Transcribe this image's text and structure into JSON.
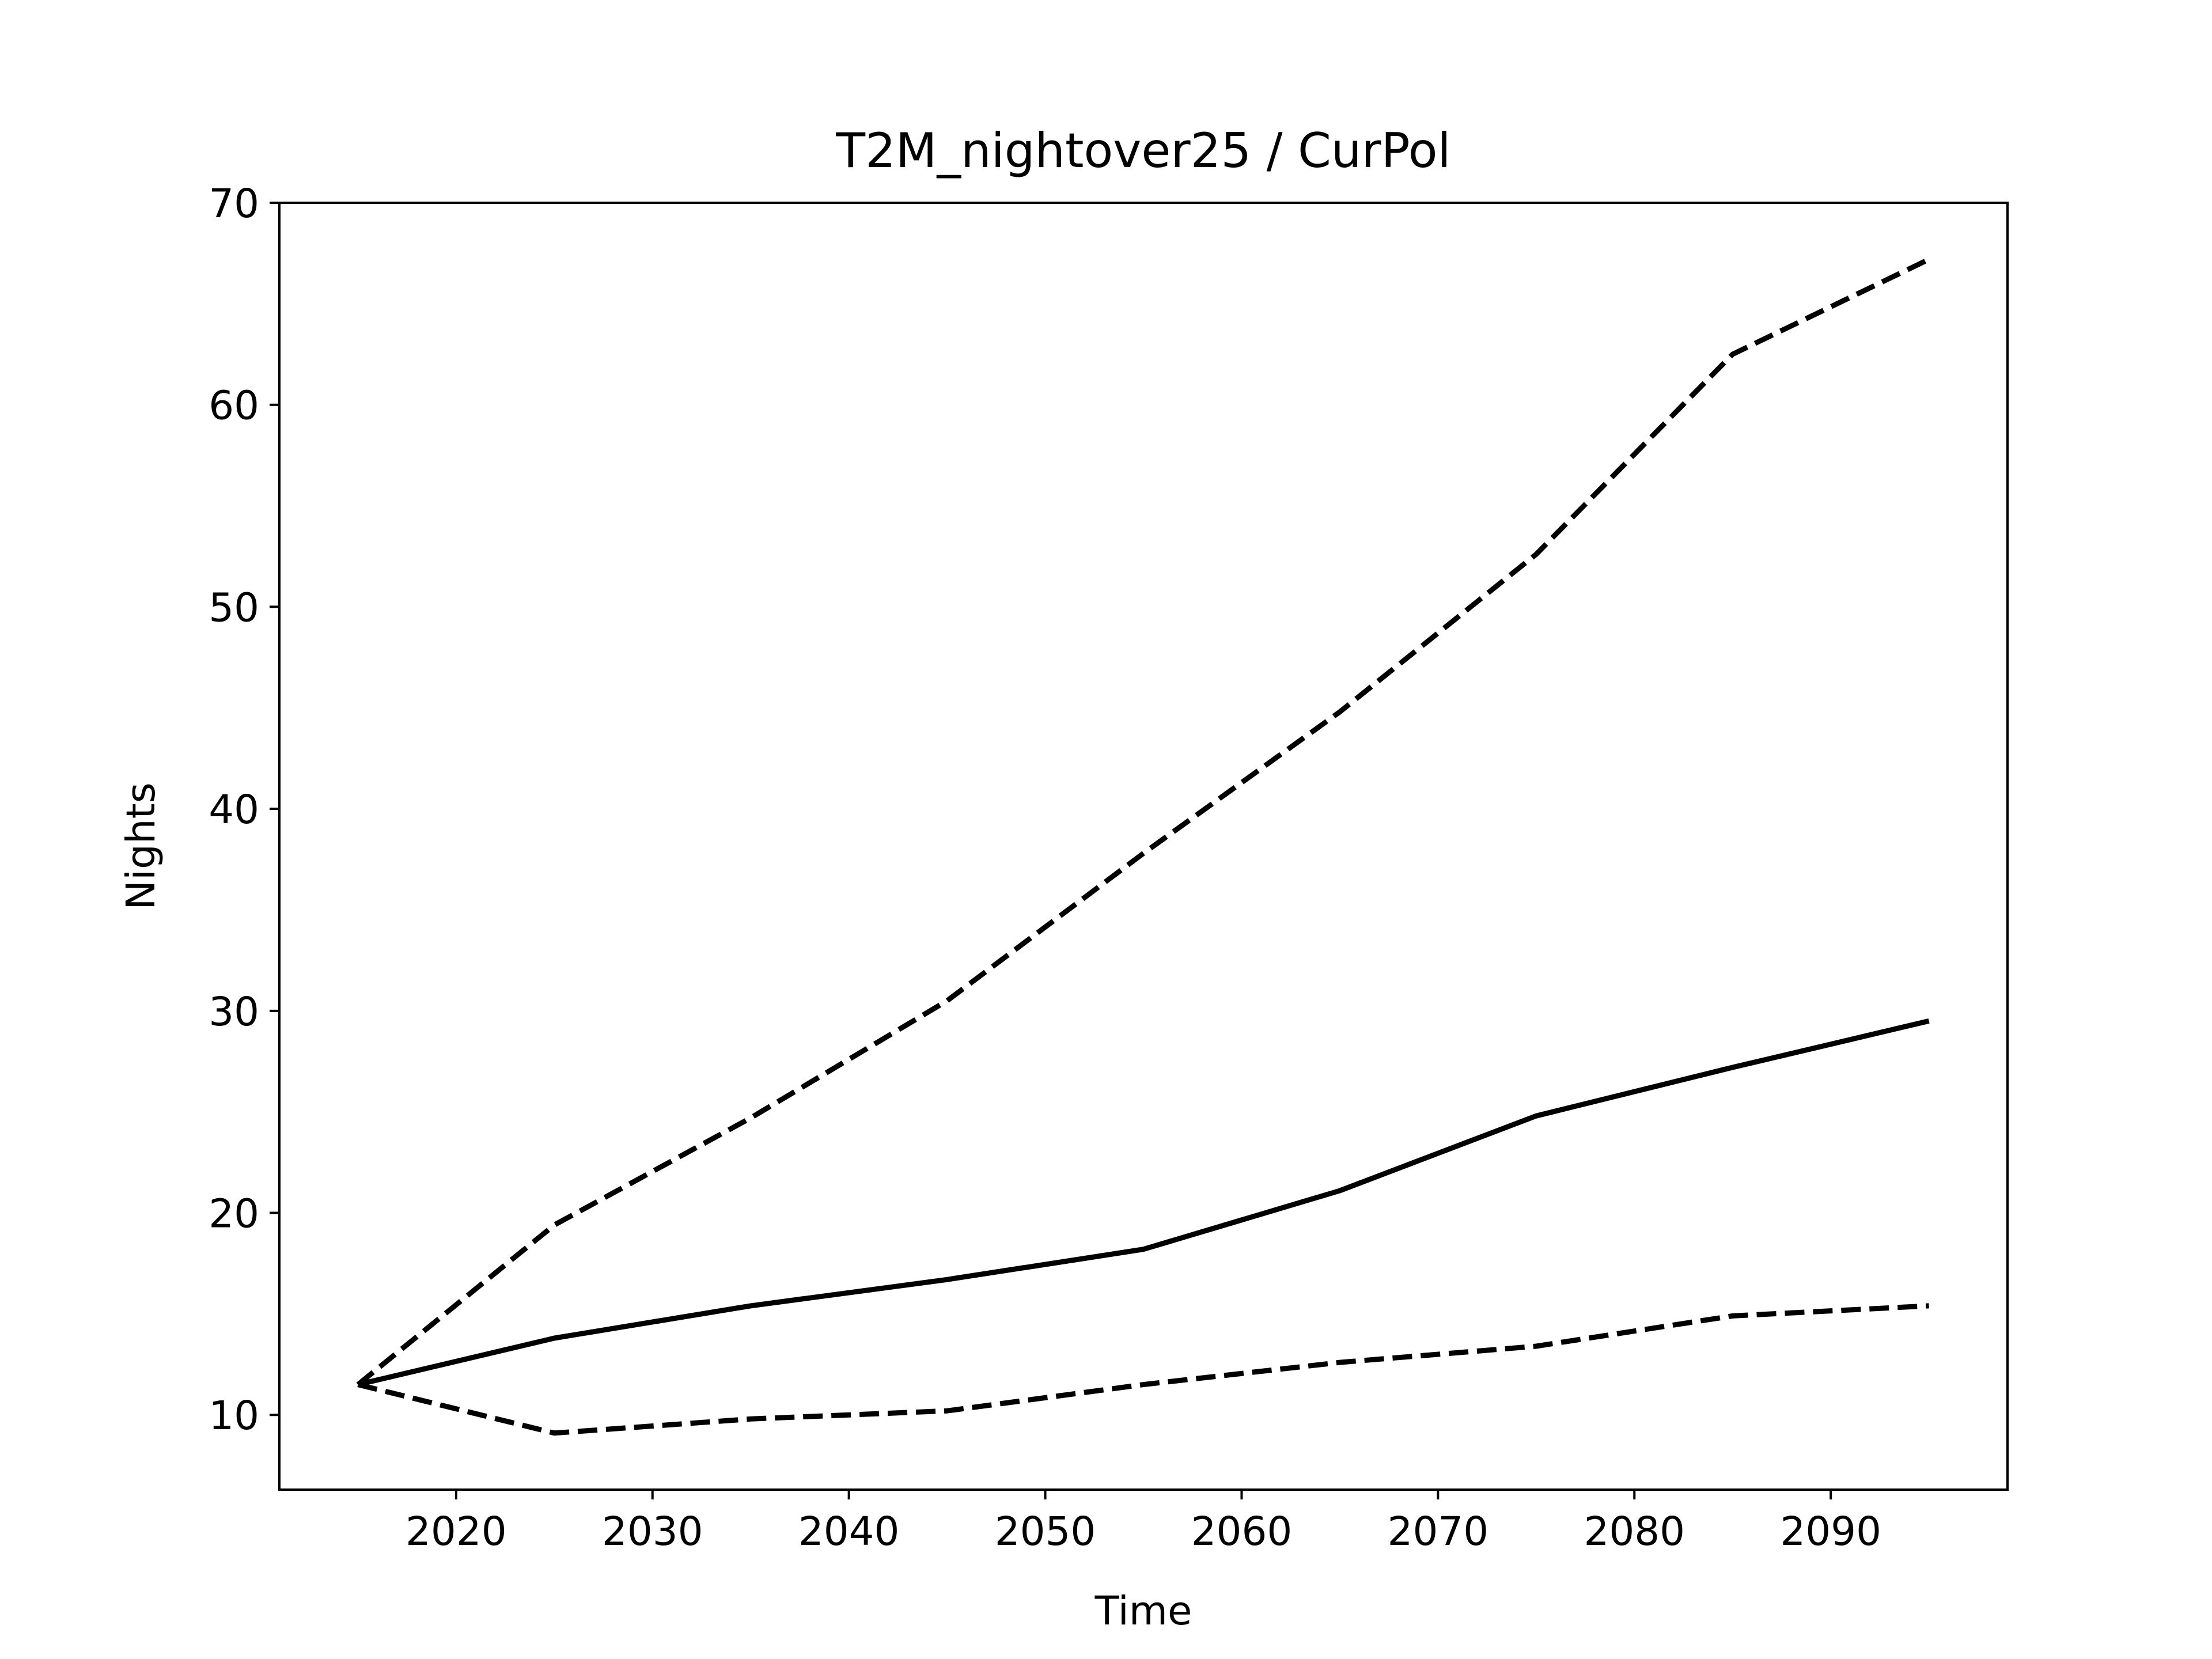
{
  "chart_data": {
    "type": "line",
    "title": "T2M_nightover25 / CurPol",
    "xlabel": "Time",
    "ylabel": "Nights",
    "xlim": [
      2011,
      2099
    ],
    "ylim": [
      6.3,
      70
    ],
    "xticks": [
      2020,
      2030,
      2040,
      2050,
      2060,
      2070,
      2080,
      2090
    ],
    "yticks": [
      10,
      20,
      30,
      40,
      50,
      60,
      70
    ],
    "grid": false,
    "legend": false,
    "x": [
      2015,
      2025,
      2035,
      2045,
      2055,
      2065,
      2075,
      2085,
      2095
    ],
    "series": [
      {
        "style": "solid",
        "color": "#000000",
        "values": [
          11.5,
          13.8,
          15.4,
          16.7,
          18.2,
          21.1,
          24.8,
          27.2,
          29.5
        ]
      },
      {
        "style": "dashed",
        "color": "#000000",
        "values": [
          11.5,
          19.4,
          24.7,
          30.5,
          37.8,
          44.8,
          52.6,
          62.5,
          67.2
        ]
      },
      {
        "style": "dashed",
        "color": "#000000",
        "values": [
          11.5,
          9.1,
          9.8,
          10.2,
          11.5,
          12.6,
          13.4,
          14.9,
          15.4
        ]
      }
    ]
  }
}
